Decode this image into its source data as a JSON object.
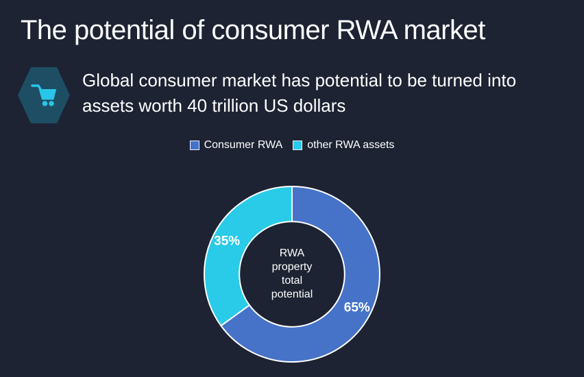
{
  "title": "The potential of consumer RWA market",
  "callout": {
    "icon": "shopping-cart",
    "text": "Global consumer market has potential to be turned into assets worth 40 trillion US dollars"
  },
  "legend": {
    "position": "top",
    "items": [
      {
        "label": "Consumer RWA",
        "color": "#4673c8"
      },
      {
        "label": "other RWA assets",
        "color": "#29cbe8"
      }
    ]
  },
  "chart_data": {
    "type": "pie",
    "subtype": "donut",
    "title": "",
    "categories": [
      "Consumer RWA",
      "other RWA assets"
    ],
    "values": [
      65,
      35
    ],
    "labels": [
      "65%",
      "35%"
    ],
    "colors": [
      "#4673c8",
      "#29cbe8"
    ],
    "start_angle_deg": -90,
    "direction": "clockwise",
    "inner_radius_ratio": 0.6,
    "slice_border_color": "#ffffff",
    "legend_position": "top",
    "center_label_lines": [
      "RWA",
      "property",
      "total",
      "potential"
    ]
  },
  "colors": {
    "background": "#1d2333",
    "text": "#ffffff",
    "hexagon_fill": "#1e4e63",
    "cart_icon": "#29c5ea",
    "slice_border": "#ffffff"
  }
}
